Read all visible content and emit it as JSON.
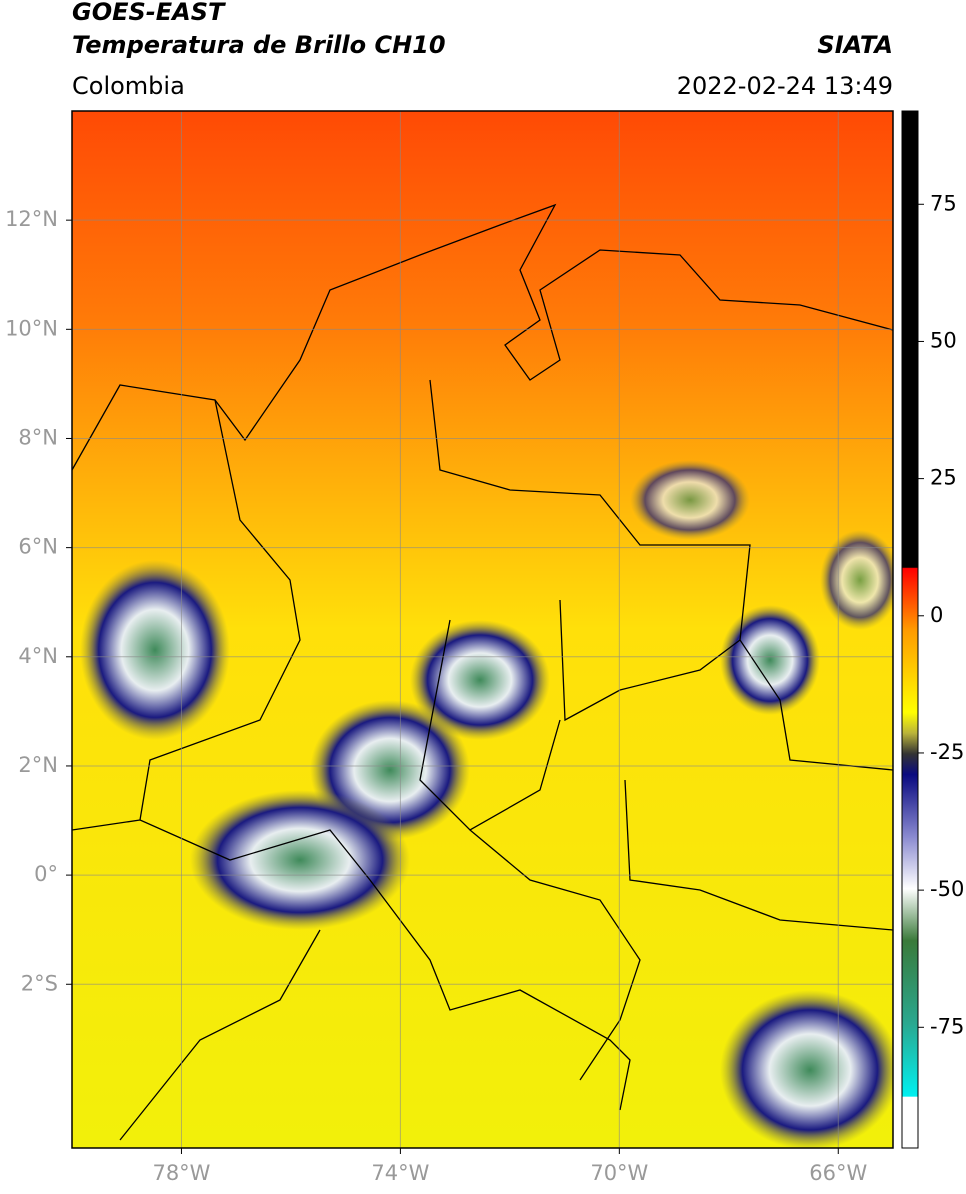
{
  "header": {
    "title_line1": "GOES-EAST",
    "title_line2": "Temperatura de Brillo CH10",
    "region": "Colombia",
    "source": "SIATA",
    "datetime": "2022-02-24 13:49"
  },
  "map": {
    "xlim": [
      -80,
      -65
    ],
    "ylim": [
      -5,
      14
    ],
    "grid": true,
    "xticks": [
      {
        "value": -78,
        "label": "78°W"
      },
      {
        "value": -74,
        "label": "74°W"
      },
      {
        "value": -70,
        "label": "70°W"
      },
      {
        "value": -66,
        "label": "66°W"
      }
    ],
    "yticks": [
      {
        "value": 12,
        "label": "12°N"
      },
      {
        "value": 10,
        "label": "10°N"
      },
      {
        "value": 8,
        "label": "8°N"
      },
      {
        "value": 6,
        "label": "6°N"
      },
      {
        "value": 4,
        "label": "4°N"
      },
      {
        "value": 2,
        "label": "2°N"
      },
      {
        "value": 0,
        "label": "0°"
      },
      {
        "value": -2,
        "label": "2°S"
      }
    ]
  },
  "colorbar": {
    "lim": [
      -97,
      92
    ],
    "ticks": [
      75,
      50,
      25,
      0,
      -25,
      -50,
      -75
    ]
  }
}
